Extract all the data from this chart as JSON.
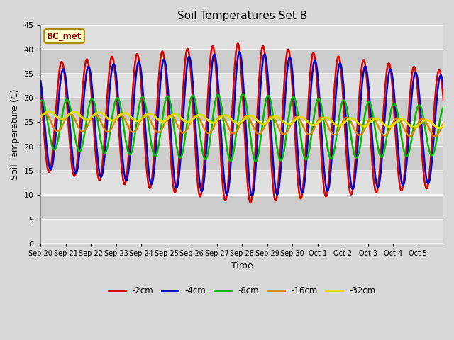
{
  "title": "Soil Temperatures Set B",
  "xlabel": "Time",
  "ylabel": "Soil Temperature (C)",
  "annotation": "BC_met",
  "ylim": [
    0,
    45
  ],
  "yticks": [
    0,
    5,
    10,
    15,
    20,
    25,
    30,
    35,
    40,
    45
  ],
  "x_labels": [
    "Sep 20",
    "Sep 21",
    "Sep 22",
    "Sep 23",
    "Sep 24",
    "Sep 25",
    "Sep 26",
    "Sep 27",
    "Sep 28",
    "Sep 29",
    "Sep 30",
    "Oct 1",
    "Oct 2",
    "Oct 3",
    "Oct 4",
    "Oct 5"
  ],
  "series": [
    {
      "label": "-2cm",
      "color": "#dd0000"
    },
    {
      "label": "-4cm",
      "color": "#0000cc"
    },
    {
      "label": "-8cm",
      "color": "#00bb00"
    },
    {
      "label": "-16cm",
      "color": "#dd8800"
    },
    {
      "label": "-32cm",
      "color": "#dddd00"
    }
  ],
  "bg_light": "#dcdcdc",
  "bg_dark": "#c8c8c8",
  "grid_color": "#ffffff",
  "title_fontsize": 11,
  "label_fontsize": 9,
  "days": 16,
  "pts_per_day": 48
}
